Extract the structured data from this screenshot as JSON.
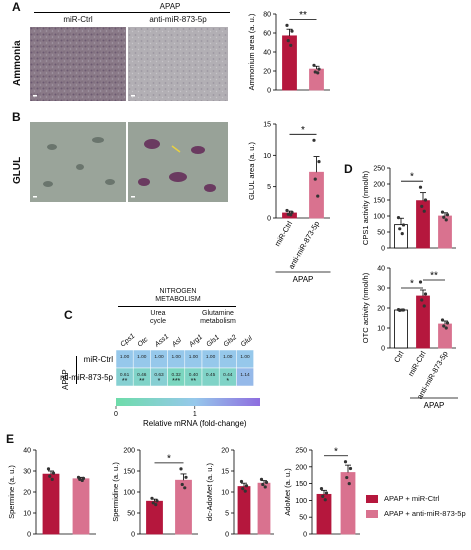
{
  "panel_A": {
    "letter": "A",
    "row_label": "Ammonia",
    "header": "APAP",
    "col1": "miR-Ctrl",
    "col2": "anti-miR-873-5p"
  },
  "panel_B": {
    "letter": "B",
    "row_label": "GLUL"
  },
  "panel_C": {
    "letter": "C",
    "title_line1": "NITROGEN",
    "title_line2": "METABOLISM",
    "group1_line1": "Urea",
    "group1_line2": "cycle",
    "group2_line1": "Glutamine",
    "group2_line2": "metabolism",
    "side_label": "APAP",
    "colorbar_label": "Relative mRNA (fold-change)",
    "colorbar_ticks": [
      "0",
      "1",
      "2"
    ]
  },
  "panel_D": {
    "letter": "D"
  },
  "panel_E": {
    "letter": "E",
    "legend": [
      "APAP + miR-Ctrl",
      "APAP + anti-miR-873-5p"
    ]
  },
  "colors": {
    "ctrl": "#b5173d",
    "anti": "#d9728f",
    "white": "#ffffff"
  },
  "chart_data": [
    {
      "id": "ammonium",
      "type": "bar",
      "ylabel": "Ammonium area (a. u.)",
      "ylim": [
        0,
        80
      ],
      "yticks": [
        0,
        20,
        40,
        60,
        80
      ],
      "categories": [
        "miR-Ctrl",
        "anti-miR-873-5p"
      ],
      "values": [
        57,
        22
      ],
      "errors": [
        7,
        3
      ],
      "points": [
        [
          68,
          62,
          52,
          47
        ],
        [
          26,
          22,
          19,
          18
        ]
      ],
      "significance": "**",
      "sig_pair": [
        0,
        1
      ]
    },
    {
      "id": "glul",
      "type": "bar",
      "ylabel": "GLUL area (a. u.)",
      "ylim": [
        0,
        15
      ],
      "yticks": [
        0,
        5,
        10,
        15
      ],
      "categories": [
        "miR-Ctrl",
        "anti-miR-873-5p"
      ],
      "values": [
        0.8,
        7.3
      ],
      "errors": [
        0.3,
        2.5
      ],
      "points": [
        [
          1.2,
          0.9,
          0.6,
          0.5
        ],
        [
          12.4,
          9.0,
          6.2,
          3.5
        ]
      ],
      "significance": "*",
      "sig_pair": [
        0,
        1
      ],
      "group_label": "APAP"
    },
    {
      "id": "cps1",
      "type": "bar",
      "ylabel": "CPS1 activity (nmol/h)",
      "ylim": [
        0,
        250
      ],
      "yticks": [
        0,
        50,
        100,
        150,
        200,
        250
      ],
      "categories": [
        "Ctrl",
        "miR-Ctrl",
        "anti-miR-873-5p"
      ],
      "values": [
        73,
        148,
        100
      ],
      "errors": [
        20,
        25,
        10
      ],
      "points": [
        [
          95,
          72,
          60,
          45
        ],
        [
          190,
          150,
          130,
          115
        ],
        [
          112,
          104,
          96,
          88
        ]
      ],
      "significance": "*",
      "sig_pair": [
        0,
        1
      ]
    },
    {
      "id": "otc",
      "type": "bar",
      "ylabel": "OTC activity (nmol/h)",
      "ylim": [
        0,
        40
      ],
      "yticks": [
        0,
        10,
        20,
        30,
        40
      ],
      "categories": [
        "Ctrl",
        "miR-Ctrl",
        "anti-miR-873-5p"
      ],
      "values": [
        19,
        26,
        12
      ],
      "errors": [
        0.4,
        3,
        1.5
      ],
      "points": [
        [
          19.2,
          19,
          18.8,
          19
        ],
        [
          33,
          27,
          24,
          21
        ],
        [
          14,
          12.5,
          11,
          10
        ]
      ],
      "significance": [
        "*",
        "**"
      ],
      "sig_pairs": [
        [
          0,
          1
        ],
        [
          1,
          2
        ]
      ],
      "group_label": "APAP"
    },
    {
      "id": "spermine",
      "type": "bar",
      "ylabel": "Spermine (a. u.)",
      "ylim": [
        0,
        40
      ],
      "yticks": [
        0,
        10,
        20,
        30,
        40
      ],
      "categories": [
        "APAP + miR-Ctrl",
        "APAP + anti-miR-873-5p"
      ],
      "values": [
        28.5,
        26.3
      ],
      "errors": [
        1.5,
        0.7
      ],
      "points": [
        [
          31,
          29,
          27.5,
          26
        ],
        [
          27,
          26.5,
          26,
          25.5
        ]
      ]
    },
    {
      "id": "spermidine",
      "type": "bar",
      "ylabel": "Spermidine (a. u.)",
      "ylim": [
        0,
        200
      ],
      "yticks": [
        0,
        50,
        100,
        150,
        200
      ],
      "categories": [
        "APAP + miR-Ctrl",
        "APAP + anti-miR-873-5p"
      ],
      "values": [
        78,
        128
      ],
      "errors": [
        5,
        15
      ],
      "points": [
        [
          85,
          79,
          74,
          70
        ],
        [
          155,
          135,
          118,
          110
        ]
      ],
      "significance": "*",
      "sig_pair": [
        0,
        1
      ]
    },
    {
      "id": "dcadomet",
      "type": "bar",
      "ylabel": "dc-AdoMet (a. u.)",
      "ylim": [
        0,
        20
      ],
      "yticks": [
        0,
        5,
        10,
        15,
        20
      ],
      "categories": [
        "APAP + miR-Ctrl",
        "APAP + anti-miR-873-5p"
      ],
      "values": [
        11.3,
        12.1
      ],
      "errors": [
        0.8,
        0.6
      ],
      "points": [
        [
          12.5,
          11.5,
          10.8,
          10.2
        ],
        [
          13,
          12.3,
          11.8,
          11.2
        ]
      ]
    },
    {
      "id": "adomet",
      "type": "bar",
      "ylabel": "AdoMet (a. u.)",
      "ylim": [
        0,
        250
      ],
      "yticks": [
        0,
        50,
        100,
        150,
        200,
        250
      ],
      "categories": [
        "APAP + miR-Ctrl",
        "APAP + anti-miR-873-5p"
      ],
      "values": [
        118,
        183
      ],
      "errors": [
        12,
        22
      ],
      "points": [
        [
          135,
          122,
          112,
          102
        ],
        [
          215,
          195,
          168,
          150
        ]
      ],
      "significance": "*",
      "sig_pair": [
        0,
        1
      ]
    },
    {
      "id": "heatmap",
      "type": "heatmap",
      "columns": [
        "Cps1",
        "Otc",
        "Ass1",
        "Asl",
        "Arg1",
        "Gls1",
        "Gls2",
        "Glul"
      ],
      "rows": [
        "miR-Ctrl",
        "anti-miR-873-5p"
      ],
      "values": [
        [
          "1.00",
          "1.00",
          "1.00",
          "1.00",
          "1.00",
          "1.00",
          "1.00",
          "1.00"
        ],
        [
          "0.61",
          "0.46",
          "0.63",
          "0.32",
          "0.40",
          "0.45",
          "0.44",
          "1.14"
        ]
      ],
      "stars": [
        [
          "",
          "",
          "",
          "",
          "",
          "",
          "",
          ""
        ],
        [
          "**",
          "**",
          "*",
          "***",
          "**",
          "",
          "*",
          ""
        ]
      ],
      "scale": [
        0,
        2
      ]
    }
  ]
}
